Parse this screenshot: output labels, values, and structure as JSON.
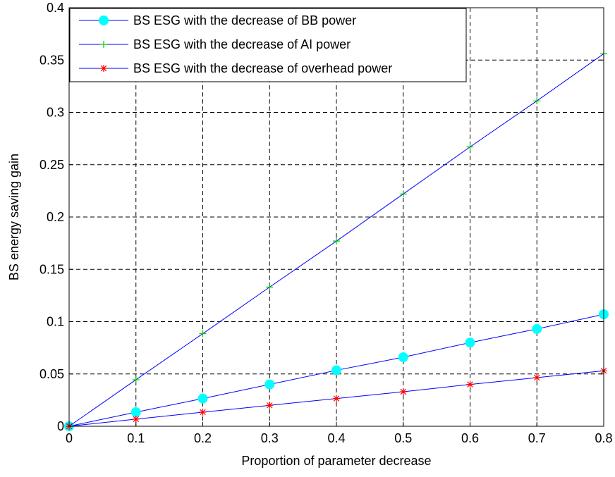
{
  "chart_data": {
    "type": "line",
    "title": "",
    "xlabel": "Proportion of parameter decrease",
    "ylabel": "BS energy saving gain",
    "xlim": [
      0,
      0.8
    ],
    "ylim": [
      0,
      0.4
    ],
    "xticks": [
      "0",
      "0.1",
      "0.2",
      "0.3",
      "0.4",
      "0.5",
      "0.6",
      "0.7",
      "0.8"
    ],
    "yticks": [
      "0",
      "0.05",
      "0.1",
      "0.15",
      "0.2",
      "0.25",
      "0.3",
      "0.35",
      "0.4"
    ],
    "grid": true,
    "legend_position": "top-left",
    "x": [
      0,
      0.1,
      0.2,
      0.3,
      0.4,
      0.5,
      0.6,
      0.7,
      0.8
    ],
    "series": [
      {
        "name": "BS ESG with the decrease of BB power",
        "values": [
          0,
          0.0135,
          0.0265,
          0.04,
          0.0535,
          0.066,
          0.08,
          0.093,
          0.107
        ],
        "line_color": "#0000ff",
        "marker": "circle",
        "marker_color": "#00ffff"
      },
      {
        "name": "BS ESG with the decrease of AI power",
        "values": [
          0,
          0.0445,
          0.0885,
          0.133,
          0.177,
          0.222,
          0.267,
          0.311,
          0.356
        ],
        "line_color": "#0000ff",
        "marker": "plus",
        "marker_color": "#00cc00"
      },
      {
        "name": "BS ESG with the decrease of overhead power",
        "values": [
          0,
          0.0068,
          0.0135,
          0.02,
          0.0265,
          0.033,
          0.04,
          0.0465,
          0.053
        ],
        "line_color": "#0000ff",
        "marker": "asterisk",
        "marker_color": "#ff0000"
      }
    ]
  }
}
